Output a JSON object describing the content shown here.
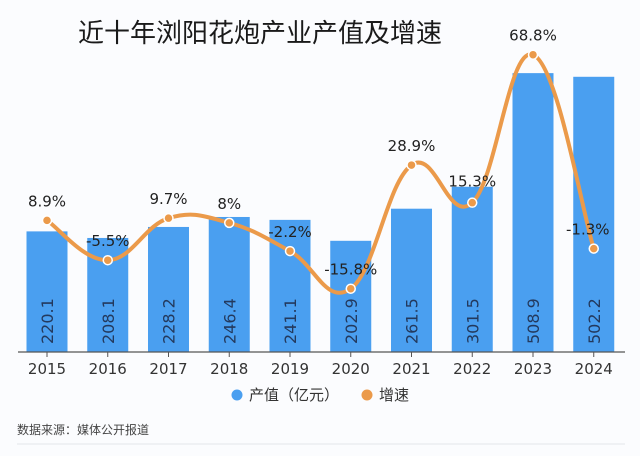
{
  "chart_data": {
    "type": "bar",
    "title": "近十年浏阳花炮产业产值及增速",
    "categories": [
      "2015",
      "2016",
      "2017",
      "2018",
      "2019",
      "2020",
      "2021",
      "2022",
      "2023",
      "2024"
    ],
    "series": [
      {
        "name": "产值（亿元）",
        "type": "bar",
        "color": "#4a9ff0",
        "values": [
          220.1,
          208.1,
          228.2,
          246.4,
          241.1,
          202.9,
          261.5,
          301.5,
          508.9,
          502.2
        ],
        "labels": [
          "220.1",
          "208.1",
          "228.2",
          "246.4",
          "241.1",
          "202.9",
          "261.5",
          "301.5",
          "508.9",
          "502.2"
        ]
      },
      {
        "name": "增速",
        "type": "line",
        "smooth": true,
        "color": "#eb9a4a",
        "values": [
          8.9,
          -5.5,
          9.7,
          8,
          -2.2,
          -15.8,
          28.9,
          15.3,
          68.8,
          -1.3
        ],
        "labels": [
          "8.9%",
          "-5.5%",
          "9.7%",
          "8%",
          "-2.2%",
          "-15.8%",
          "28.9%",
          "15.3%",
          "68.8%",
          "-1.3%"
        ]
      }
    ],
    "xlabel": "",
    "ylabel": "",
    "grid": false,
    "legend": "bottom-center",
    "source": "数据来源：媒体公开报道"
  }
}
